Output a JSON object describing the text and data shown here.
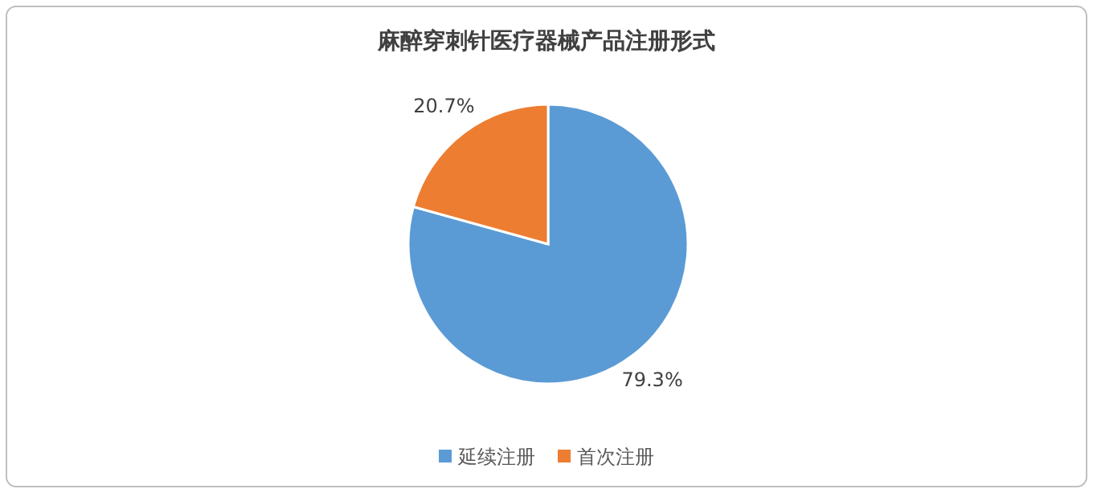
{
  "chart_data": {
    "type": "pie",
    "title": "麻醉穿刺针医疗器械产品注册形式",
    "categories": [
      "延续注册",
      "首次注册"
    ],
    "values": [
      79.3,
      20.7
    ],
    "value_labels": [
      "79.3%",
      "20.7%"
    ],
    "colors": [
      "#5b9bd5",
      "#ed7d31"
    ],
    "legend": "bottom"
  }
}
